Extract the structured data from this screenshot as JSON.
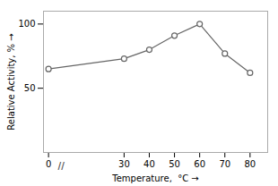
{
  "chart_data": {
    "type": "line",
    "xlabel": "Temperature,  °C",
    "ylabel": "Relative Activity, %",
    "x": [
      0,
      30,
      40,
      50,
      60,
      70,
      80
    ],
    "values": [
      65,
      73,
      80,
      91,
      100,
      77,
      62
    ],
    "color": "#666666",
    "marker": "circle",
    "xlim": [
      -2,
      87
    ],
    "ylim": [
      0,
      110
    ],
    "xticks": [
      0,
      30,
      40,
      50,
      60,
      70,
      80
    ],
    "yticks": [
      50,
      100
    ],
    "grid": false,
    "annotations": [
      {
        "text": "//",
        "x": 5,
        "y": 0
      }
    ]
  }
}
